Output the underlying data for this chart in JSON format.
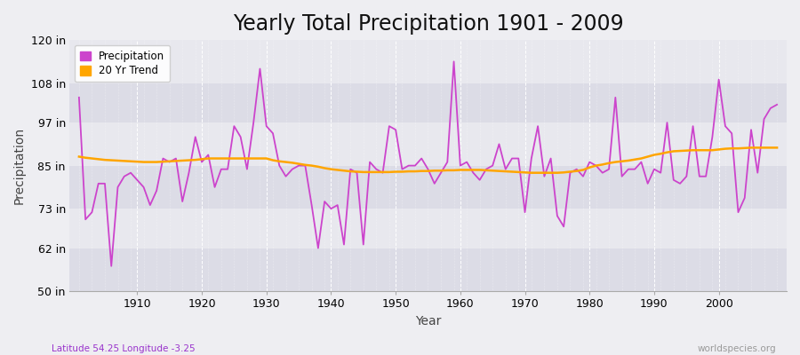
{
  "title": "Yearly Total Precipitation 1901 - 2009",
  "ylabel": "Precipitation",
  "xlabel": "Year",
  "subtitle_left": "Latitude 54.25 Longitude -3.25",
  "subtitle_right": "worldspecies.org",
  "years": [
    1901,
    1902,
    1903,
    1904,
    1905,
    1906,
    1907,
    1908,
    1909,
    1910,
    1911,
    1912,
    1913,
    1914,
    1915,
    1916,
    1917,
    1918,
    1919,
    1920,
    1921,
    1922,
    1923,
    1924,
    1925,
    1926,
    1927,
    1928,
    1929,
    1930,
    1931,
    1932,
    1933,
    1934,
    1935,
    1936,
    1937,
    1938,
    1939,
    1940,
    1941,
    1942,
    1943,
    1944,
    1945,
    1946,
    1947,
    1948,
    1949,
    1950,
    1951,
    1952,
    1953,
    1954,
    1955,
    1956,
    1957,
    1958,
    1959,
    1960,
    1961,
    1962,
    1963,
    1964,
    1965,
    1966,
    1967,
    1968,
    1969,
    1970,
    1971,
    1972,
    1973,
    1974,
    1975,
    1976,
    1977,
    1978,
    1979,
    1980,
    1981,
    1982,
    1983,
    1984,
    1985,
    1986,
    1987,
    1988,
    1989,
    1990,
    1991,
    1992,
    1993,
    1994,
    1995,
    1996,
    1997,
    1998,
    1999,
    2000,
    2001,
    2002,
    2003,
    2004,
    2005,
    2006,
    2007,
    2008,
    2009
  ],
  "precipitation": [
    104,
    70,
    72,
    80,
    80,
    57,
    79,
    82,
    83,
    81,
    79,
    74,
    78,
    87,
    86,
    87,
    75,
    83,
    93,
    86,
    88,
    79,
    84,
    84,
    96,
    93,
    84,
    97,
    112,
    96,
    94,
    85,
    82,
    84,
    85,
    85,
    74,
    62,
    75,
    73,
    74,
    63,
    84,
    83,
    63,
    86,
    84,
    83,
    96,
    95,
    84,
    85,
    85,
    87,
    84,
    80,
    83,
    86,
    114,
    85,
    86,
    83,
    81,
    84,
    85,
    91,
    84,
    87,
    87,
    72,
    87,
    96,
    82,
    87,
    71,
    68,
    83,
    84,
    82,
    86,
    85,
    83,
    84,
    104,
    82,
    84,
    84,
    86,
    80,
    84,
    83,
    97,
    81,
    80,
    82,
    96,
    82,
    82,
    93,
    109,
    96,
    94,
    72,
    76,
    95,
    83,
    98,
    101,
    102
  ],
  "trend": [
    87.5,
    87.2,
    87.0,
    86.8,
    86.6,
    86.5,
    86.4,
    86.3,
    86.2,
    86.1,
    86.0,
    86.0,
    86.0,
    86.1,
    86.2,
    86.3,
    86.4,
    86.5,
    86.6,
    86.8,
    87.0,
    87.0,
    87.0,
    87.0,
    87.0,
    87.0,
    87.0,
    87.0,
    87.0,
    87.0,
    86.5,
    86.2,
    86.0,
    85.8,
    85.5,
    85.2,
    85.0,
    84.7,
    84.3,
    84.0,
    83.8,
    83.6,
    83.4,
    83.3,
    83.2,
    83.2,
    83.2,
    83.2,
    83.2,
    83.3,
    83.3,
    83.4,
    83.4,
    83.5,
    83.5,
    83.6,
    83.6,
    83.7,
    83.7,
    83.8,
    83.8,
    83.8,
    83.8,
    83.7,
    83.6,
    83.5,
    83.4,
    83.3,
    83.2,
    83.1,
    83.0,
    83.0,
    83.0,
    83.0,
    83.0,
    83.1,
    83.3,
    83.5,
    83.8,
    84.5,
    85.0,
    85.3,
    85.7,
    86.0,
    86.2,
    86.4,
    86.7,
    87.0,
    87.5,
    88.0,
    88.3,
    88.7,
    89.0,
    89.1,
    89.2,
    89.3,
    89.3,
    89.3,
    89.3,
    89.5,
    89.7,
    89.8,
    89.8,
    89.9,
    90.0,
    90.0,
    90.0,
    90.0,
    90.0
  ],
  "precip_color": "#CC44CC",
  "trend_color": "#FFA500",
  "bg_color": "#EEEEF2",
  "band_color_light": "#E8E8EE",
  "band_color_dark": "#DCDCE6",
  "ylim_min": 50,
  "ylim_max": 120,
  "yticks": [
    50,
    62,
    73,
    85,
    97,
    108,
    120
  ],
  "ytick_labels": [
    "50 in",
    "62 in",
    "73 in",
    "85 in",
    "97 in",
    "108 in",
    "120 in"
  ],
  "xtick_decade": [
    1910,
    1920,
    1930,
    1940,
    1950,
    1960,
    1970,
    1980,
    1990,
    2000
  ],
  "legend_precip": "Precipitation",
  "legend_trend": "20 Yr Trend",
  "title_fontsize": 17,
  "label_fontsize": 10,
  "tick_fontsize": 9,
  "annotation_fontsize": 8.5
}
